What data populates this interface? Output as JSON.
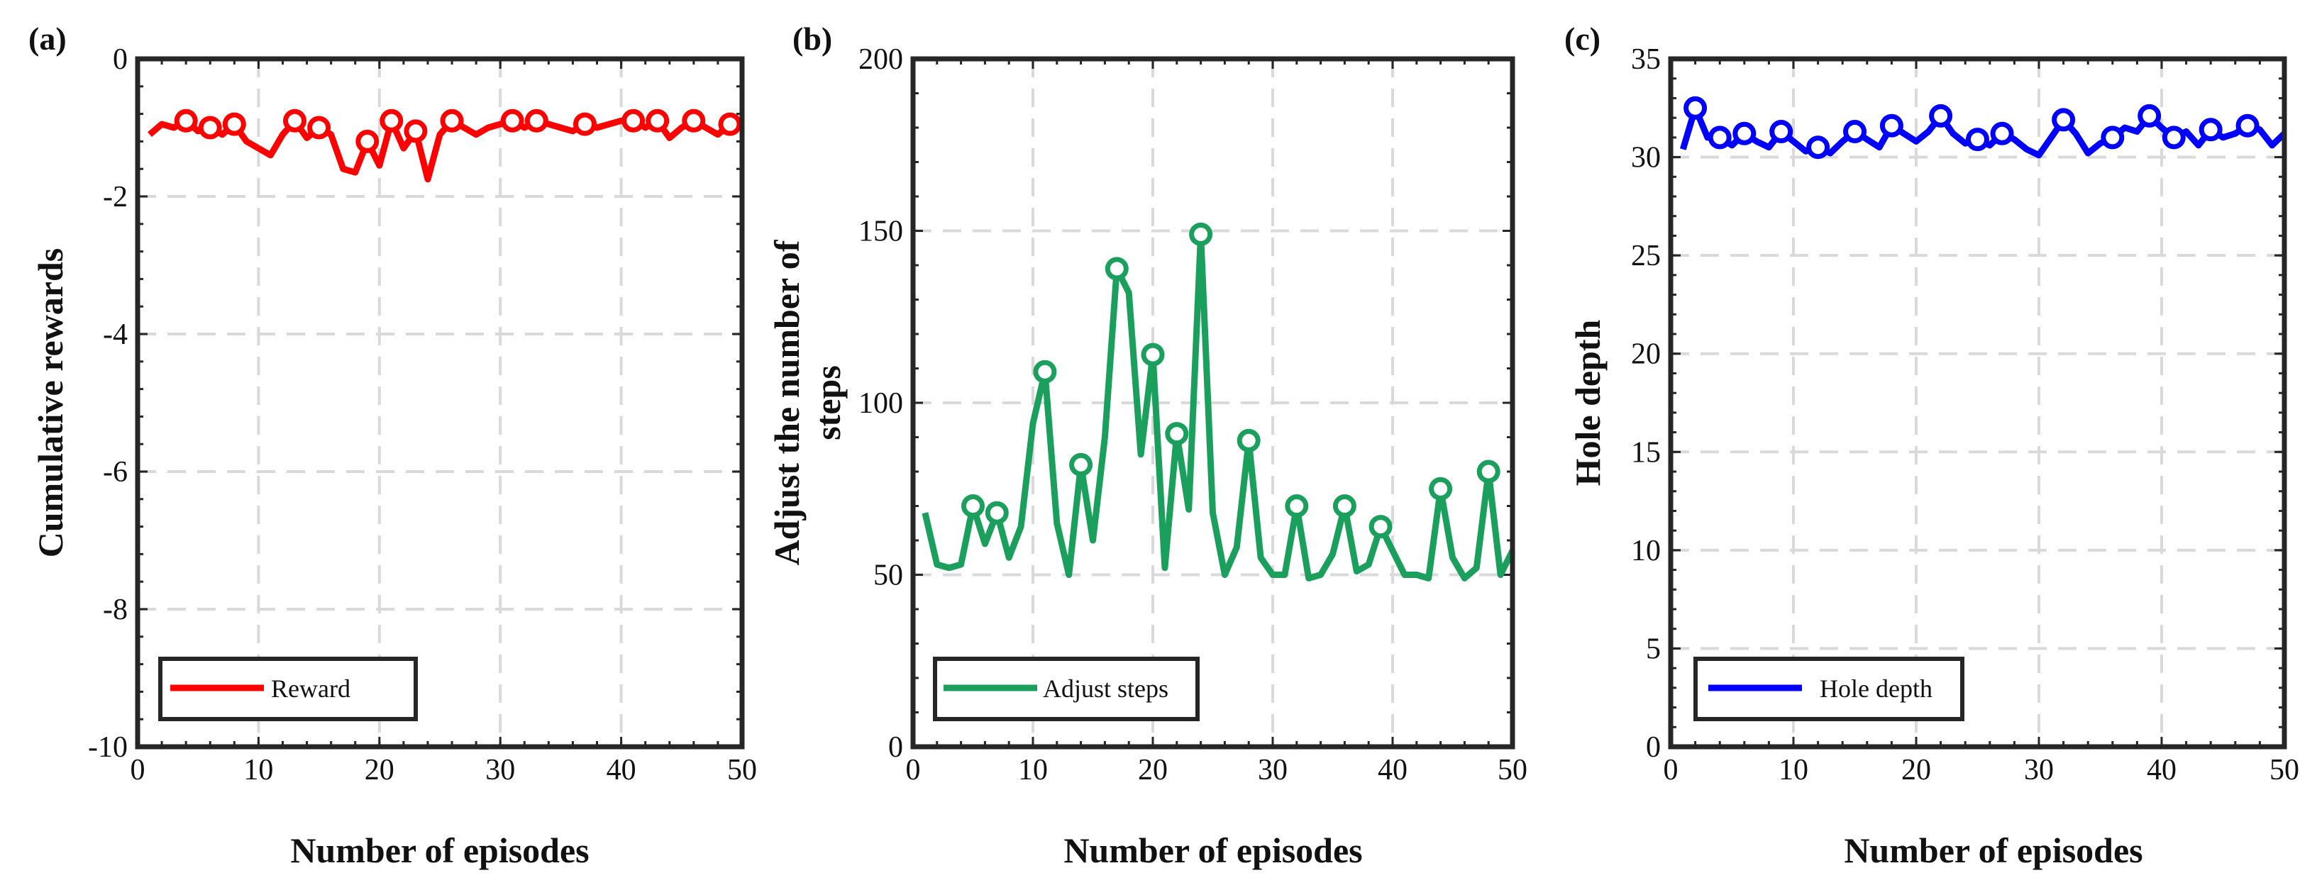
{
  "chart_data": [
    {
      "type": "line",
      "panel_label": "(a)",
      "xlabel": "Number of episodes",
      "ylabel": "Cumulative rewards",
      "xlim": [
        0,
        50
      ],
      "ylim": [
        -10,
        0
      ],
      "xticks": [
        0,
        10,
        20,
        30,
        40,
        50
      ],
      "yticks": [
        -10,
        -8,
        -6,
        -4,
        -2,
        0
      ],
      "xtick_labels": [
        "0",
        "10",
        "20",
        "30",
        "40",
        "50"
      ],
      "ytick_labels": [
        "-10",
        "-8",
        "-6",
        "-4",
        "-2",
        "0"
      ],
      "grid": true,
      "legend_position": "bottom-left",
      "series": [
        {
          "name": "Reward",
          "color": "#ff0000",
          "marker": "circle",
          "x": [
            1,
            2,
            3,
            4,
            5,
            6,
            7,
            8,
            9,
            10,
            11,
            12,
            13,
            14,
            15,
            16,
            17,
            18,
            19,
            20,
            21,
            22,
            23,
            24,
            25,
            26,
            27,
            28,
            29,
            30,
            31,
            32,
            33,
            34,
            35,
            36,
            37,
            38,
            39,
            40,
            41,
            42,
            43,
            44,
            45,
            46,
            47,
            48,
            49,
            50
          ],
          "values": [
            -1.1,
            -0.95,
            -1.0,
            -0.9,
            -1.05,
            -1.0,
            -1.1,
            -0.95,
            -1.2,
            -1.3,
            -1.4,
            -1.1,
            -0.9,
            -1.15,
            -1.0,
            -1.1,
            -1.6,
            -1.65,
            -1.2,
            -1.55,
            -0.9,
            -1.3,
            -1.05,
            -1.75,
            -1.1,
            -0.9,
            -1.0,
            -1.1,
            -1.0,
            -0.95,
            -0.9,
            -1.0,
            -0.9,
            -0.95,
            -1.0,
            -1.05,
            -0.95,
            -1.0,
            -0.95,
            -0.9,
            -0.9,
            -1.0,
            -0.9,
            -1.15,
            -1.0,
            -0.9,
            -1.0,
            -1.1,
            -0.95,
            -1.0
          ],
          "marker_x": [
            4,
            6,
            8,
            13,
            15,
            19,
            21,
            23,
            26,
            31,
            33,
            37,
            41,
            43,
            46,
            49
          ]
        }
      ]
    },
    {
      "type": "line",
      "panel_label": "(b)",
      "xlabel": "Number of episodes",
      "ylabel_lines": [
        "Adjust the number of",
        "steps"
      ],
      "xlim": [
        0,
        50
      ],
      "ylim": [
        0,
        200
      ],
      "xticks": [
        0,
        10,
        20,
        30,
        40,
        50
      ],
      "yticks": [
        0,
        50,
        100,
        150,
        200
      ],
      "xtick_labels": [
        "0",
        "10",
        "20",
        "30",
        "40",
        "50"
      ],
      "ytick_labels": [
        "0",
        "50",
        "100",
        "150",
        "200"
      ],
      "grid": true,
      "legend_position": "bottom-left",
      "series": [
        {
          "name": "Adjust steps",
          "color": "#1a9f5c",
          "marker": "circle",
          "x": [
            1,
            2,
            3,
            4,
            5,
            6,
            7,
            8,
            9,
            10,
            11,
            12,
            13,
            14,
            15,
            16,
            17,
            18,
            19,
            20,
            21,
            22,
            23,
            24,
            25,
            26,
            27,
            28,
            29,
            30,
            31,
            32,
            33,
            34,
            35,
            36,
            37,
            38,
            39,
            40,
            41,
            42,
            43,
            44,
            45,
            46,
            47,
            48,
            49,
            50
          ],
          "values": [
            68,
            53,
            52,
            53,
            70,
            59,
            68,
            55,
            64,
            94,
            109,
            65,
            50,
            82,
            60,
            90,
            139,
            132,
            85,
            114,
            52,
            91,
            69,
            149,
            68,
            50,
            58,
            89,
            55,
            50,
            50,
            70,
            49,
            50,
            56,
            70,
            51,
            53,
            64,
            57,
            50,
            50,
            49,
            75,
            55,
            49,
            52,
            80,
            50,
            57
          ],
          "marker_x": [
            5,
            7,
            11,
            14,
            17,
            20,
            22,
            24,
            28,
            32,
            36,
            39,
            44,
            48
          ]
        }
      ]
    },
    {
      "type": "line",
      "panel_label": "(c)",
      "xlabel": "Number of episodes",
      "ylabel": "Hole depth",
      "xlim": [
        0,
        50
      ],
      "ylim": [
        0,
        35
      ],
      "xticks": [
        0,
        10,
        20,
        30,
        40,
        50
      ],
      "yticks": [
        0,
        5,
        10,
        15,
        20,
        25,
        30,
        35
      ],
      "xtick_labels": [
        "0",
        "10",
        "20",
        "30",
        "40",
        "50"
      ],
      "ytick_labels": [
        "0",
        "5",
        "10",
        "15",
        "20",
        "25",
        "30",
        "35"
      ],
      "grid": true,
      "legend_position": "bottom-left",
      "series": [
        {
          "name": "Hole depth",
          "color": "#0000ff",
          "marker": "circle",
          "x": [
            1,
            2,
            3,
            4,
            5,
            6,
            7,
            8,
            9,
            10,
            11,
            12,
            13,
            14,
            15,
            16,
            17,
            18,
            19,
            20,
            21,
            22,
            23,
            24,
            25,
            26,
            27,
            28,
            29,
            30,
            31,
            32,
            33,
            34,
            35,
            36,
            37,
            38,
            39,
            40,
            41,
            42,
            43,
            44,
            45,
            46,
            47,
            48,
            49,
            50
          ],
          "values": [
            30.4,
            32.5,
            31.0,
            31.0,
            30.6,
            31.2,
            30.8,
            30.5,
            31.3,
            30.8,
            30.3,
            30.5,
            30.2,
            30.8,
            31.3,
            30.9,
            30.5,
            31.6,
            31.2,
            30.8,
            31.3,
            32.1,
            31.2,
            30.7,
            30.9,
            30.6,
            31.2,
            30.9,
            30.4,
            30.1,
            31.0,
            31.9,
            31.2,
            30.2,
            30.7,
            31.0,
            31.5,
            31.3,
            32.1,
            31.5,
            31.0,
            31.3,
            30.6,
            31.4,
            31.0,
            31.2,
            31.6,
            31.4,
            30.6,
            31.2
          ],
          "marker_x": [
            2,
            4,
            6,
            9,
            12,
            15,
            18,
            22,
            25,
            27,
            32,
            36,
            39,
            41,
            44,
            47
          ]
        }
      ]
    }
  ]
}
